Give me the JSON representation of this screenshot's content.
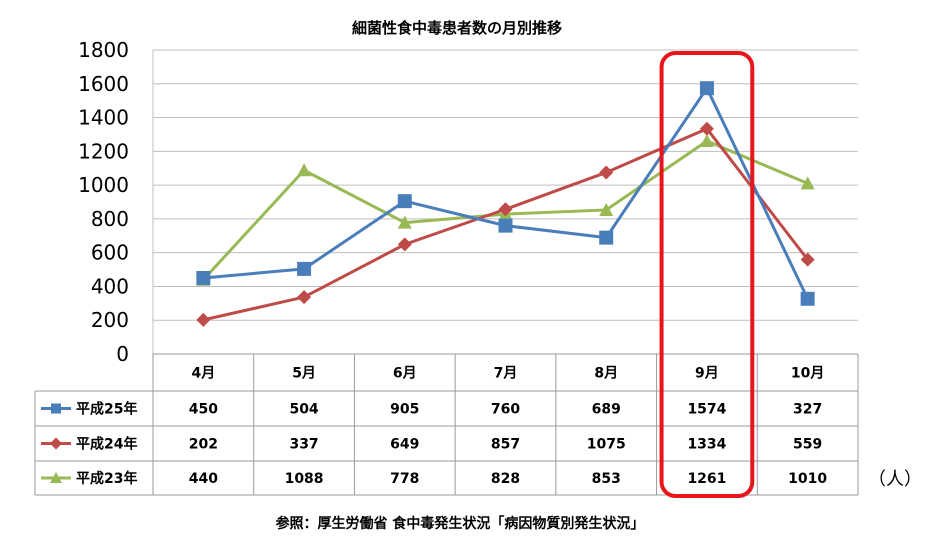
{
  "chart_data": {
    "type": "line",
    "title": "細菌性食中毒患者数の月別推移",
    "categories": [
      "4月",
      "5月",
      "6月",
      "7月",
      "8月",
      "9月",
      "10月"
    ],
    "series": [
      {
        "name": "平成25年",
        "values": [
          450,
          504,
          905,
          760,
          689,
          1574,
          327
        ],
        "color": "#4a7ebb",
        "marker": "square"
      },
      {
        "name": "平成24年",
        "values": [
          202,
          337,
          649,
          857,
          1075,
          1334,
          559
        ],
        "color": "#be4b48",
        "marker": "diamond"
      },
      {
        "name": "平成23年",
        "values": [
          440,
          1088,
          778,
          828,
          853,
          1261,
          1010
        ],
        "color": "#98b954",
        "marker": "triangle"
      }
    ],
    "yticks": [
      "0",
      "200",
      "400",
      "600",
      "800",
      "1000",
      "1200",
      "1400",
      "1600",
      "1800"
    ],
    "ylim": [
      0,
      1800
    ],
    "grid": true,
    "legend": "data-table",
    "highlight": {
      "category": "9月",
      "color": "#e8161b"
    },
    "unit": "（人）",
    "source": "参照：厚生労働省 食中毒発生状況「病因物質別発生状況」"
  }
}
